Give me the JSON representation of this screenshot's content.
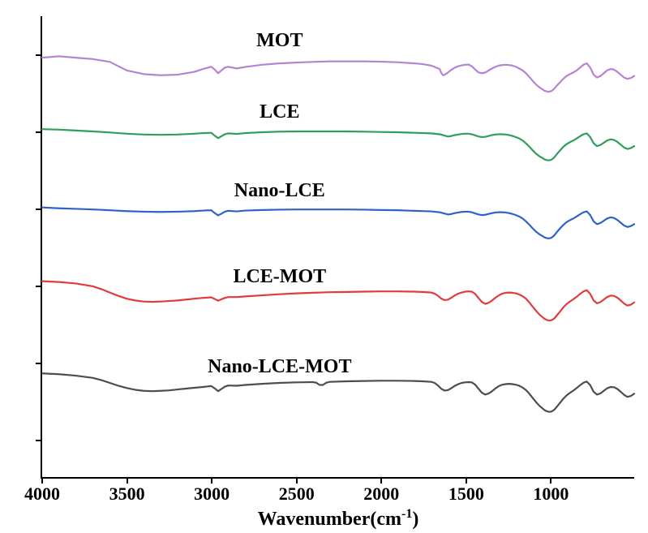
{
  "chart": {
    "type": "line",
    "background_color": "#ffffff",
    "axis_color": "#000000",
    "xlabel_html": "Wavenumber(cm<sup>-1</sup>)",
    "xlabel_fontsize": 24,
    "series_label_fontsize": 24,
    "tick_label_fontsize": 22,
    "line_width": 2.2,
    "xlim": [
      4000,
      500
    ],
    "x_ticks": [
      4000,
      3500,
      3000,
      2500,
      2000,
      1500,
      1000
    ],
    "y_tick_count": 6,
    "series": [
      {
        "name": "MOT",
        "label": "MOT",
        "color": "#b583d6",
        "label_x_cm": 2600,
        "label_y_frac": 0.03,
        "baseline_frac": 0.09,
        "xs": [
          4000,
          3900,
          3800,
          3700,
          3600,
          3550,
          3500,
          3400,
          3300,
          3200,
          3100,
          3050,
          3000,
          2980,
          2960,
          2940,
          2920,
          2900,
          2850,
          2800,
          2700,
          2600,
          2500,
          2400,
          2300,
          2200,
          2100,
          2000,
          1900,
          1800,
          1750,
          1700,
          1650,
          1640,
          1630,
          1620,
          1600,
          1580,
          1560,
          1540,
          1520,
          1500,
          1480,
          1460,
          1440,
          1420,
          1400,
          1380,
          1360,
          1340,
          1320,
          1300,
          1280,
          1260,
          1240,
          1220,
          1200,
          1180,
          1160,
          1140,
          1120,
          1100,
          1080,
          1060,
          1040,
          1030,
          1020,
          1010,
          1000,
          990,
          980,
          970,
          960,
          940,
          920,
          900,
          880,
          860,
          840,
          820,
          800,
          780,
          760,
          740,
          720,
          700,
          680,
          660,
          640,
          620,
          600,
          580,
          560,
          540,
          520,
          500
        ],
        "ys": [
          0,
          -0.5,
          0,
          0.5,
          1.5,
          3,
          4.5,
          5.8,
          6.2,
          6.0,
          5.0,
          4.0,
          3.2,
          4.2,
          5.5,
          4.5,
          3.5,
          3.2,
          3.8,
          3.3,
          2.5,
          2.0,
          1.7,
          1.5,
          1.3,
          1.3,
          1.3,
          1.4,
          1.6,
          2.0,
          2.3,
          2.8,
          4.0,
          5.5,
          6.2,
          6.0,
          5.2,
          4.2,
          3.5,
          3.0,
          2.7,
          2.5,
          2.4,
          3.0,
          4.2,
          5.2,
          5.5,
          5.2,
          4.5,
          3.8,
          3.2,
          2.8,
          2.6,
          2.5,
          2.6,
          2.8,
          3.2,
          3.8,
          4.5,
          5.5,
          6.8,
          8.2,
          9.5,
          10.5,
          11.3,
          11.7,
          11.9,
          12.0,
          12.0,
          11.8,
          11.4,
          10.8,
          10.0,
          8.8,
          7.5,
          6.5,
          5.8,
          5.2,
          4.5,
          3.5,
          2.5,
          2.0,
          3.5,
          6.0,
          7.0,
          6.5,
          5.5,
          4.5,
          4.0,
          4.2,
          5.0,
          6.0,
          7.0,
          7.5,
          7.2,
          6.5
        ],
        "y_scale": 3.5
      },
      {
        "name": "LCE",
        "label": "LCE",
        "color": "#2f9e5b",
        "label_x_cm": 2600,
        "label_y_frac": 0.185,
        "baseline_frac": 0.245,
        "xs": [
          4000,
          3900,
          3800,
          3700,
          3600,
          3500,
          3400,
          3300,
          3200,
          3100,
          3050,
          3000,
          2980,
          2960,
          2940,
          2920,
          2900,
          2850,
          2800,
          2700,
          2600,
          2500,
          2400,
          2300,
          2200,
          2100,
          2000,
          1900,
          1800,
          1700,
          1650,
          1620,
          1600,
          1580,
          1560,
          1540,
          1520,
          1500,
          1480,
          1460,
          1440,
          1420,
          1400,
          1380,
          1360,
          1340,
          1320,
          1300,
          1280,
          1260,
          1240,
          1220,
          1200,
          1180,
          1160,
          1140,
          1120,
          1100,
          1080,
          1060,
          1040,
          1030,
          1020,
          1010,
          1000,
          990,
          980,
          970,
          960,
          940,
          920,
          900,
          880,
          860,
          840,
          820,
          800,
          780,
          760,
          740,
          720,
          700,
          680,
          660,
          640,
          620,
          600,
          580,
          560,
          540,
          520,
          500
        ],
        "ys": [
          0,
          0.2,
          0.5,
          0.8,
          1.2,
          1.6,
          1.9,
          2.0,
          1.9,
          1.6,
          1.4,
          1.3,
          2.3,
          3.2,
          2.5,
          1.8,
          1.5,
          1.7,
          1.4,
          1.1,
          0.9,
          0.8,
          0.8,
          0.8,
          0.8,
          0.9,
          1.0,
          1.1,
          1.3,
          1.5,
          1.8,
          2.3,
          2.6,
          2.4,
          2.1,
          1.9,
          1.7,
          1.6,
          1.6,
          1.8,
          2.2,
          2.6,
          2.8,
          2.7,
          2.4,
          2.1,
          1.9,
          1.8,
          1.8,
          1.9,
          2.1,
          2.4,
          2.8,
          3.3,
          4.0,
          5.0,
          6.2,
          7.5,
          8.7,
          9.6,
          10.3,
          10.7,
          10.9,
          11.0,
          11.0,
          10.8,
          10.4,
          9.8,
          9.0,
          7.6,
          6.3,
          5.3,
          4.6,
          4.0,
          3.3,
          2.5,
          1.8,
          1.5,
          2.8,
          5.0,
          6.0,
          5.6,
          4.8,
          4.0,
          3.6,
          3.8,
          4.5,
          5.5,
          6.5,
          7.0,
          6.7,
          6.0
        ],
        "y_scale": 3.5
      },
      {
        "name": "Nano-LCE",
        "label": "Nano-LCE",
        "color": "#2f62c9",
        "label_x_cm": 2600,
        "label_y_frac": 0.355,
        "baseline_frac": 0.415,
        "xs": [
          4000,
          3900,
          3800,
          3700,
          3600,
          3500,
          3400,
          3300,
          3200,
          3100,
          3050,
          3000,
          2980,
          2960,
          2940,
          2920,
          2900,
          2850,
          2800,
          2700,
          2600,
          2500,
          2400,
          2300,
          2200,
          2100,
          2000,
          1900,
          1800,
          1700,
          1650,
          1620,
          1600,
          1580,
          1560,
          1540,
          1520,
          1500,
          1480,
          1460,
          1440,
          1420,
          1400,
          1380,
          1360,
          1340,
          1320,
          1300,
          1280,
          1260,
          1240,
          1220,
          1200,
          1180,
          1160,
          1140,
          1120,
          1100,
          1080,
          1060,
          1040,
          1030,
          1020,
          1010,
          1000,
          990,
          980,
          970,
          960,
          940,
          920,
          900,
          880,
          860,
          840,
          820,
          800,
          780,
          760,
          740,
          720,
          700,
          680,
          660,
          640,
          620,
          600,
          580,
          560,
          540,
          520,
          500
        ],
        "ys": [
          0,
          0.3,
          0.5,
          0.7,
          1.0,
          1.3,
          1.5,
          1.6,
          1.5,
          1.3,
          1.1,
          1.0,
          2.0,
          2.8,
          2.2,
          1.5,
          1.2,
          1.4,
          1.1,
          0.9,
          0.8,
          0.7,
          0.7,
          0.7,
          0.7,
          0.8,
          0.9,
          1.0,
          1.2,
          1.4,
          1.7,
          2.2,
          2.5,
          2.3,
          2.0,
          1.8,
          1.6,
          1.5,
          1.5,
          1.7,
          2.1,
          2.5,
          2.7,
          2.6,
          2.3,
          2.0,
          1.8,
          1.7,
          1.7,
          1.8,
          2.0,
          2.3,
          2.7,
          3.2,
          3.9,
          4.9,
          6.1,
          7.4,
          8.6,
          9.5,
          10.2,
          10.6,
          10.8,
          10.9,
          10.9,
          10.7,
          10.3,
          9.7,
          8.9,
          7.5,
          6.2,
          5.2,
          4.5,
          3.9,
          3.2,
          2.4,
          1.7,
          1.4,
          2.7,
          4.9,
          5.9,
          5.5,
          4.7,
          3.9,
          3.5,
          3.7,
          4.4,
          5.4,
          6.4,
          6.9,
          6.6,
          5.9
        ],
        "y_scale": 3.5
      },
      {
        "name": "LCE-MOT",
        "label": "LCE-MOT",
        "color": "#e23b3b",
        "label_x_cm": 2600,
        "label_y_frac": 0.54,
        "baseline_frac": 0.575,
        "xs": [
          4000,
          3900,
          3800,
          3700,
          3650,
          3600,
          3550,
          3500,
          3450,
          3400,
          3350,
          3300,
          3250,
          3200,
          3150,
          3100,
          3050,
          3000,
          2980,
          2960,
          2940,
          2920,
          2900,
          2850,
          2800,
          2700,
          2600,
          2500,
          2400,
          2300,
          2200,
          2100,
          2000,
          1900,
          1800,
          1750,
          1700,
          1680,
          1660,
          1640,
          1620,
          1600,
          1580,
          1560,
          1540,
          1520,
          1500,
          1480,
          1460,
          1440,
          1420,
          1400,
          1380,
          1360,
          1340,
          1320,
          1300,
          1280,
          1260,
          1240,
          1220,
          1200,
          1180,
          1160,
          1140,
          1120,
          1100,
          1080,
          1060,
          1040,
          1030,
          1020,
          1010,
          1000,
          990,
          980,
          970,
          960,
          940,
          920,
          900,
          880,
          860,
          840,
          820,
          800,
          780,
          760,
          740,
          720,
          700,
          680,
          660,
          640,
          620,
          600,
          580,
          560,
          540,
          520,
          500
        ],
        "ys": [
          0,
          0.3,
          0.8,
          1.8,
          2.8,
          4.0,
          5.2,
          6.2,
          6.8,
          7.2,
          7.3,
          7.2,
          7.0,
          6.8,
          6.5,
          6.2,
          5.9,
          5.7,
          6.3,
          6.9,
          6.4,
          5.9,
          5.6,
          5.6,
          5.4,
          5.0,
          4.6,
          4.3,
          4.1,
          3.9,
          3.8,
          3.7,
          3.6,
          3.6,
          3.7,
          3.8,
          4.0,
          4.4,
          5.2,
          6.2,
          6.7,
          6.5,
          5.8,
          5.0,
          4.4,
          4.0,
          3.7,
          3.6,
          3.7,
          4.5,
          6.0,
          7.4,
          8.0,
          7.6,
          6.8,
          5.8,
          5.0,
          4.4,
          4.1,
          4.0,
          4.1,
          4.3,
          4.7,
          5.3,
          6.2,
          7.5,
          9.0,
          10.5,
          11.8,
          12.8,
          13.3,
          13.6,
          13.8,
          13.9,
          13.8,
          13.5,
          13.0,
          12.3,
          10.8,
          9.3,
          8.1,
          7.2,
          6.4,
          5.5,
          4.5,
          3.6,
          3.2,
          4.5,
          6.8,
          7.8,
          7.4,
          6.5,
          5.6,
          5.1,
          5.2,
          5.8,
          6.8,
          7.9,
          8.6,
          8.3,
          7.5
        ],
        "y_scale": 3.5
      },
      {
        "name": "Nano-LCE-MOT",
        "label": "Nano-LCE-MOT",
        "color": "#4d4d4d",
        "label_x_cm": 2600,
        "label_y_frac": 0.735,
        "baseline_frac": 0.775,
        "xs": [
          4000,
          3900,
          3800,
          3700,
          3650,
          3600,
          3550,
          3500,
          3450,
          3400,
          3350,
          3300,
          3250,
          3200,
          3150,
          3100,
          3050,
          3000,
          2980,
          2960,
          2940,
          2920,
          2900,
          2850,
          2800,
          2700,
          2600,
          2500,
          2400,
          2380,
          2360,
          2340,
          2320,
          2300,
          2200,
          2100,
          2000,
          1900,
          1800,
          1750,
          1700,
          1680,
          1660,
          1640,
          1620,
          1600,
          1580,
          1560,
          1540,
          1520,
          1500,
          1480,
          1460,
          1440,
          1420,
          1400,
          1380,
          1360,
          1340,
          1320,
          1300,
          1280,
          1260,
          1240,
          1220,
          1200,
          1180,
          1160,
          1140,
          1120,
          1100,
          1080,
          1060,
          1040,
          1030,
          1020,
          1010,
          1000,
          990,
          980,
          970,
          960,
          940,
          920,
          900,
          880,
          860,
          840,
          820,
          800,
          780,
          760,
          740,
          720,
          700,
          680,
          660,
          640,
          620,
          600,
          580,
          560,
          540,
          520,
          500
        ],
        "ys": [
          0,
          0.3,
          0.8,
          1.6,
          2.4,
          3.4,
          4.4,
          5.2,
          5.8,
          6.2,
          6.3,
          6.2,
          6.0,
          5.7,
          5.4,
          5.1,
          4.8,
          4.5,
          5.3,
          6.3,
          5.5,
          4.7,
          4.3,
          4.4,
          4.1,
          3.7,
          3.4,
          3.2,
          3.1,
          3.3,
          4.1,
          4.1,
          3.3,
          3.0,
          2.8,
          2.7,
          2.6,
          2.6,
          2.7,
          2.8,
          3.0,
          3.4,
          4.3,
          5.5,
          6.1,
          5.9,
          5.2,
          4.4,
          3.8,
          3.4,
          3.2,
          3.1,
          3.2,
          4.0,
          5.5,
          6.9,
          7.5,
          7.1,
          6.3,
          5.3,
          4.5,
          4.0,
          3.8,
          3.7,
          3.8,
          4.0,
          4.4,
          5.0,
          5.9,
          7.2,
          8.7,
          10.2,
          11.5,
          12.5,
          13.0,
          13.3,
          13.5,
          13.6,
          13.5,
          13.2,
          12.7,
          12.0,
          10.5,
          9.0,
          7.8,
          6.9,
          6.1,
          5.2,
          4.2,
          3.3,
          2.9,
          4.2,
          6.5,
          7.5,
          7.1,
          6.2,
          5.3,
          4.8,
          4.9,
          5.5,
          6.5,
          7.6,
          8.3,
          8.0,
          7.2
        ],
        "y_scale": 3.5
      }
    ]
  }
}
